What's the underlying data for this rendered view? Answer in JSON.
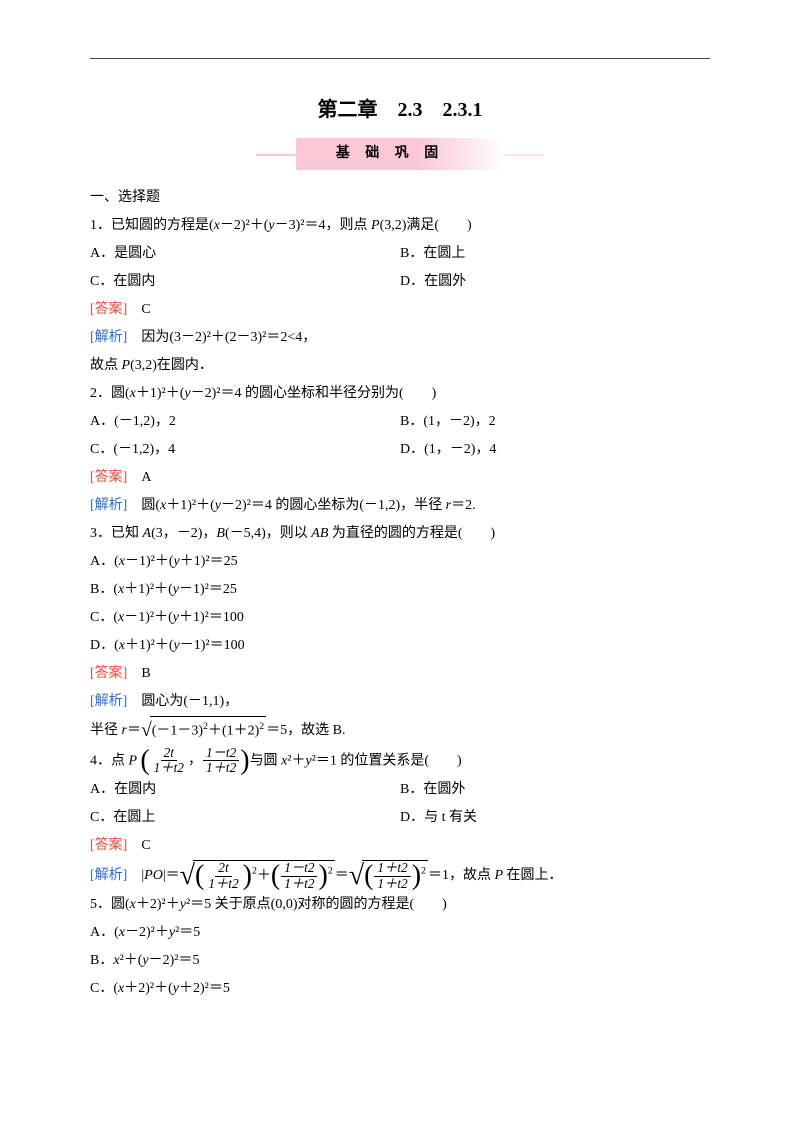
{
  "chapter_title": "第二章　2.3　2.3.1",
  "banner": "基 础 巩 固",
  "section1": "一、选择题",
  "q1": {
    "stem_pre": "1．已知圆的方程是(",
    "stem_x": "x",
    "stem_mid1": "－2)²＋(",
    "stem_y": "y",
    "stem_mid2": "－3)²＝4，则点 ",
    "stem_p": "P",
    "stem_post": "(3,2)满足(　　)",
    "A": "A．是圆心",
    "B": "B．在圆上",
    "C": "C．在圆内",
    "D": "D．在圆外",
    "ans_label": "[答案]",
    "ans": "C",
    "exp_label": "[解析]",
    "exp1": "因为(3－2)²＋(2－3)²＝2<4，",
    "exp2_pre": "故点 ",
    "exp2_p": "P",
    "exp2_post": "(3,2)在圆内．"
  },
  "q2": {
    "stem_pre": "2．圆(",
    "stem_x": "x",
    "stem_mid1": "＋1)²＋(",
    "stem_y": "y",
    "stem_mid2": "－2)²＝4 的圆心坐标和半径分别为(　　)",
    "A": "A．(－1,2)，2",
    "B": "B．(1，－2)，2",
    "C": "C．(－1,2)，4",
    "D": "D．(1，－2)，4",
    "ans_label": "[答案]",
    "ans": "A",
    "exp_label": "[解析]",
    "exp_pre": "圆(",
    "exp_x": "x",
    "exp_mid1": "＋1)²＋(",
    "exp_y": "y",
    "exp_mid2": "－2)²＝4 的圆心坐标为(－1,2)，半径 ",
    "exp_r": "r",
    "exp_post": "＝2."
  },
  "q3": {
    "stem_pre": "3．已知 ",
    "A_it": "A",
    "A_coord": "(3，－2)，",
    "B_it": "B",
    "B_coord": "(－5,4)，则以 ",
    "AB_it": "AB",
    "stem_post": " 为直径的圆的方程是(　　)",
    "optA_pre": "A．(",
    "x": "x",
    "optA_mid": "－1)²＋(",
    "y": "y",
    "optA_post": "＋1)²＝25",
    "optB_pre": "B．(",
    "optB_mid": "＋1)²＋(",
    "optB_post": "－1)²＝25",
    "optC_pre": "C．(",
    "optC_mid": "－1)²＋(",
    "optC_post": "＋1)²＝100",
    "optD_pre": "D．(",
    "optD_mid": "＋1)²＋(",
    "optD_post": "－1)²＝100",
    "ans_label": "[答案]",
    "ans": "B",
    "exp_label": "[解析]",
    "exp1": "圆心为(－1,1)，",
    "exp2_pre": "半径 ",
    "r": "r",
    "exp2_eq": "＝",
    "sqrt_body1": "(－1－3)",
    "sqrt_body1_sup": "2",
    "sqrt_body1_plus": "＋(1＋2)",
    "sqrt_body1_sup2": "2",
    "exp2_post": "＝5，故选 B."
  },
  "q4": {
    "stem_pre": "4．点 ",
    "P": "P ",
    "frac1_num": "2t",
    "frac1_den": "1＋t2",
    "comma": "，",
    "frac2_num": "1－t2",
    "frac2_den": "1＋t2",
    "stem_mid": "与圆 ",
    "x": "x",
    "sq1": "²＋",
    "y": "y",
    "sq2": "²＝1 的位置关系是(　　)",
    "A": "A．在圆内",
    "B": "B．在圆外",
    "C": "C．在圆上",
    "D": "D．与 t 有关",
    "ans_label": "[答案]",
    "ans": "C",
    "exp_label": "[解析]",
    "exp_pre": "|",
    "PO": "PO",
    "exp_eq": "|＝",
    "sA_num": "2t",
    "sA_den": "1＋t2",
    "sA_sup": "2",
    "plus": "＋",
    "sB_num": "1－t2",
    "sB_den": "1＋t2",
    "sB_sup": "2",
    "eq2": "＝",
    "sC_num": "1＋t2",
    "sC_den": "1＋t2",
    "sC_sup": "2",
    "exp_post": "＝1，故点 ",
    "P2": "P",
    "exp_post2": " 在圆上．"
  },
  "q5": {
    "stem_pre": "5．圆(",
    "x": "x",
    "stem_mid": "＋2)²＋",
    "y": "y",
    "stem_post": "²＝5 关于原点(0,0)对称的圆的方程是(　　)",
    "optA_pre": "A．(",
    "optA_mid": "－2)²＋",
    "optA_post": "²＝5",
    "optB_pre": "B．",
    "optB_mid": "²＋(",
    "optB_post": "－2)²＝5",
    "optC_pre": "C．(",
    "optC_mid": "＋2)²＋(",
    "optC_post": "＋2)²＝5"
  },
  "colors": {
    "answer": "#e74c3c",
    "analysis": "#2b6cd6",
    "banner_bg": "#fbc7d7"
  }
}
